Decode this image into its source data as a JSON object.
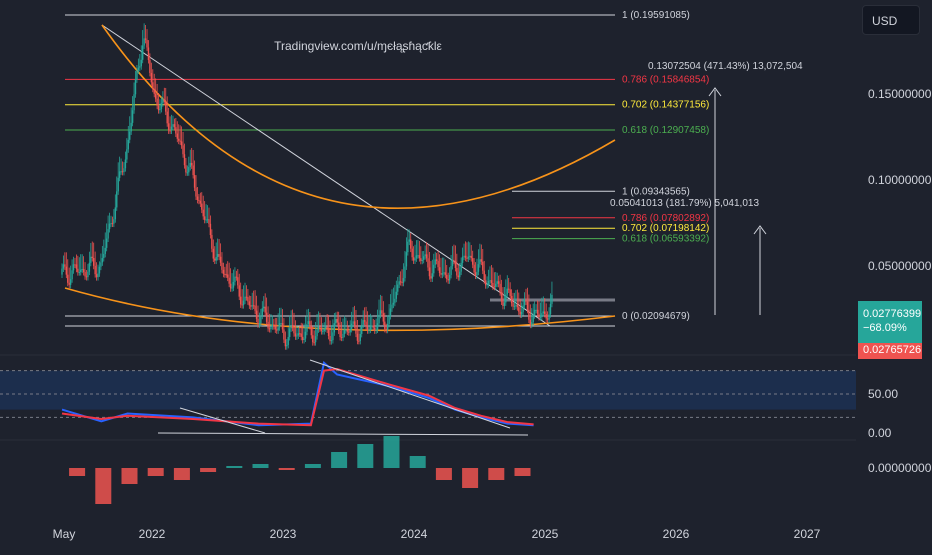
{
  "title": "Tradingview.com/u/ɱєłąʂɦąƈƙlε",
  "currency": "USD",
  "price_badge": {
    "price": "0.02776399",
    "change": "−68.09%",
    "second": "0.02765726",
    "up_color": "#26a69a",
    "down_color": "#ef5350"
  },
  "chart_data": [
    {
      "type": "candlestick",
      "title": "Tradingview.com/u/ɱєłąʂɦąƈƙlε",
      "x_ticks": [
        "May",
        "2022",
        "2023",
        "2024",
        "2025",
        "2026",
        "2027"
      ],
      "y_ticks": [
        "0.15000000",
        "0.10000000",
        "0.05000000"
      ],
      "ylim": [
        0.0,
        0.2
      ],
      "candles_approx": {
        "x_points": [
          0.0,
          0.3,
          0.5,
          0.62,
          0.7,
          0.85,
          1.0,
          1.2,
          1.45,
          1.7,
          2.0,
          2.3,
          2.5,
          2.65,
          2.8,
          2.95,
          3.1,
          3.3,
          3.5,
          3.65,
          3.75
        ],
        "y_points": [
          0.045,
          0.05,
          0.12,
          0.185,
          0.15,
          0.13,
          0.1,
          0.05,
          0.025,
          0.01,
          0.012,
          0.013,
          0.02,
          0.06,
          0.05,
          0.045,
          0.055,
          0.038,
          0.025,
          0.02,
          0.0278
        ]
      },
      "fibonacci_sets": [
        {
          "levels": [
            {
              "label": "1 (0.19591085)",
              "value": 0.19591085,
              "color": "#d1d4dc"
            },
            {
              "label": "0.786 (0.15846854)",
              "value": 0.15846854,
              "color": "#f23645"
            },
            {
              "label": "0.702 (0.14377156)",
              "value": 0.14377156,
              "color": "#ffeb3b"
            },
            {
              "label": "0.618 (0.12907458)",
              "value": 0.12907458,
              "color": "#4caf50"
            }
          ]
        },
        {
          "levels": [
            {
              "label": "1 (0.09343565)",
              "value": 0.09343565,
              "color": "#d1d4dc"
            },
            {
              "label": "0.786 (0.07802892)",
              "value": 0.07802892,
              "color": "#f23645"
            },
            {
              "label": "0.702 (0.07198142)",
              "value": 0.07198142,
              "color": "#ffeb3b"
            },
            {
              "label": "0.618 (0.06593392)",
              "value": 0.06593392,
              "color": "#4caf50"
            }
          ]
        },
        {
          "levels": [
            {
              "label": "0 (0.02094679)",
              "value": 0.02094679,
              "color": "#d1d4dc"
            }
          ]
        }
      ],
      "annotations": [
        "0.13072504 (471.43%) 13,072,504",
        "0.05041013 (181.79%) 5,041,013"
      ],
      "current_price": 0.02776399,
      "change_pct": "−68.09%"
    },
    {
      "type": "line",
      "y_ticks": [
        "50.00",
        "0.00"
      ],
      "ylim": [
        0,
        100
      ],
      "series": [
        {
          "values_x": [
            0.0,
            0.3,
            0.5,
            1.0,
            1.5,
            1.9,
            2.0,
            2.1,
            2.5,
            2.8,
            3.0,
            3.2,
            3.4,
            3.6
          ],
          "values": [
            30,
            15,
            25,
            20,
            10,
            12,
            90,
            75,
            60,
            45,
            30,
            20,
            12,
            10
          ],
          "color": "#2962ff"
        },
        {
          "values_x": [
            0.0,
            0.3,
            0.5,
            1.0,
            1.5,
            1.9,
            2.0,
            2.1,
            2.5,
            2.8,
            3.0,
            3.2,
            3.4,
            3.6
          ],
          "values": [
            25,
            18,
            22,
            18,
            12,
            10,
            80,
            82,
            62,
            48,
            32,
            22,
            14,
            11
          ],
          "color": "#f23645"
        }
      ]
    },
    {
      "type": "bar",
      "y_ticks": [
        "0.00000000"
      ],
      "values_x": [
        0.1,
        0.3,
        0.5,
        0.7,
        0.9,
        1.1,
        1.3,
        1.5,
        1.7,
        1.9,
        2.1,
        2.3,
        2.5,
        2.7,
        2.9,
        3.1,
        3.3,
        3.5
      ],
      "values": [
        -0.2,
        -0.9,
        -0.4,
        -0.2,
        -0.3,
        -0.1,
        0.05,
        0.1,
        -0.05,
        0.1,
        0.4,
        0.6,
        0.8,
        0.3,
        -0.3,
        -0.5,
        -0.3,
        -0.2
      ],
      "colors": {
        "pos": "#26a69a",
        "neg": "#ef5350"
      }
    }
  ]
}
